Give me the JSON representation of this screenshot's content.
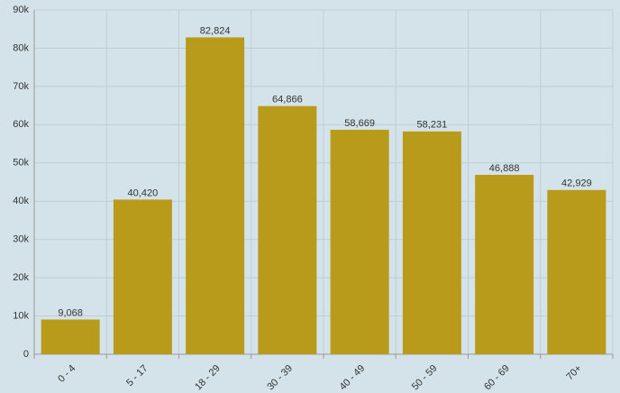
{
  "chart_data": {
    "type": "bar",
    "categories": [
      "0 - 4",
      "5 - 17",
      "18 - 29",
      "30 - 39",
      "40 - 49",
      "50 - 59",
      "60 - 69",
      "70+"
    ],
    "values": [
      9068,
      40420,
      82824,
      64866,
      58669,
      58231,
      46888,
      42929
    ],
    "value_labels": [
      "9,068",
      "40,420",
      "82,824",
      "64,866",
      "58,669",
      "58,231",
      "46,888",
      "42,929"
    ],
    "color": "#b89b1a",
    "ylim": [
      0,
      90000
    ],
    "yticks": [
      0,
      {
        "value": 10000,
        "label": "10k"
      },
      {
        "value": 20000,
        "label": "20k"
      },
      {
        "value": 30000,
        "label": "30k"
      },
      {
        "value": 40000,
        "label": "40k"
      },
      {
        "value": 50000,
        "label": "50k"
      },
      {
        "value": 60000,
        "label": "60k"
      },
      {
        "value": 70000,
        "label": "70k"
      },
      {
        "value": 80000,
        "label": "80k"
      },
      {
        "value": 90000,
        "label": "90k"
      }
    ],
    "grid": true
  }
}
